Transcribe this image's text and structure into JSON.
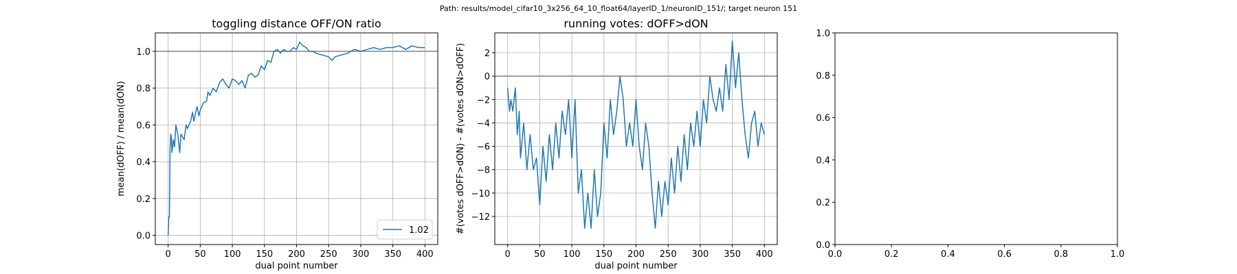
{
  "suptitle": "Path: results/model_cifar10_3x256_64_10_float64/layerID_1/neuronID_151/; target neuron 151",
  "colors": {
    "line": "#1f77b4",
    "refline": "#808080",
    "grid": "#b0b0b0",
    "axis": "#000000"
  },
  "chart_data": [
    {
      "type": "line",
      "title": "toggling distance OFF/ON ratio",
      "xlabel": "dual point number",
      "ylabel": "mean(dOFF) / mean(dON)",
      "xlim": [
        -20,
        420
      ],
      "ylim": [
        -0.05,
        1.1
      ],
      "xticks": [
        0,
        50,
        100,
        150,
        200,
        250,
        300,
        350,
        400
      ],
      "yticks": [
        0.0,
        0.2,
        0.4,
        0.6,
        0.8,
        1.0
      ],
      "ytick_labels": [
        "0.0",
        "0.2",
        "0.4",
        "0.6",
        "0.8",
        "1.0"
      ],
      "grid": true,
      "legend": {
        "placement": "lower-right",
        "entries": [
          "1.02"
        ]
      },
      "hline": 1.0,
      "series": [
        {
          "name": "1.02",
          "x": [
            0,
            1,
            2,
            3,
            4,
            5,
            6,
            8,
            10,
            12,
            15,
            18,
            20,
            25,
            28,
            30,
            35,
            38,
            40,
            45,
            48,
            50,
            55,
            60,
            62,
            65,
            70,
            75,
            80,
            85,
            90,
            95,
            100,
            105,
            110,
            115,
            120,
            125,
            130,
            135,
            140,
            145,
            150,
            155,
            160,
            165,
            170,
            175,
            180,
            185,
            190,
            195,
            200,
            205,
            210,
            215,
            220,
            225,
            230,
            240,
            250,
            255,
            260,
            270,
            280,
            290,
            300,
            310,
            320,
            330,
            340,
            350,
            360,
            370,
            380,
            390,
            400
          ],
          "y": [
            0.0,
            0.1,
            0.1,
            0.47,
            0.55,
            0.53,
            0.45,
            0.52,
            0.48,
            0.6,
            0.55,
            0.45,
            0.55,
            0.52,
            0.6,
            0.58,
            0.62,
            0.67,
            0.62,
            0.7,
            0.65,
            0.68,
            0.72,
            0.73,
            0.78,
            0.76,
            0.8,
            0.78,
            0.83,
            0.85,
            0.82,
            0.8,
            0.85,
            0.84,
            0.82,
            0.84,
            0.8,
            0.87,
            0.88,
            0.86,
            0.87,
            0.92,
            0.9,
            0.95,
            0.94,
            1.0,
            1.01,
            0.99,
            1.01,
            1.0,
            1.0,
            1.02,
            1.01,
            1.05,
            1.03,
            1.02,
            1.0,
            1.0,
            0.99,
            0.98,
            0.97,
            0.95,
            0.97,
            0.98,
            0.99,
            1.01,
            1.0,
            1.01,
            1.02,
            1.01,
            1.02,
            1.02,
            1.03,
            1.01,
            1.03,
            1.02,
            1.02
          ]
        }
      ]
    },
    {
      "type": "line",
      "title": "running votes: dOFF>dON",
      "xlabel": "dual point number",
      "ylabel": "#(votes dOFF>dON) - #(votes dON>dOFF)",
      "xlim": [
        -20,
        420
      ],
      "ylim": [
        -14.4,
        3.7
      ],
      "xticks": [
        0,
        50,
        100,
        150,
        200,
        250,
        300,
        350,
        400
      ],
      "yticks": [
        -12,
        -10,
        -8,
        -6,
        -4,
        -2,
        0,
        2
      ],
      "ytick_labels": [
        "−12",
        "−10",
        "−8",
        "−6",
        "−4",
        "−2",
        "0",
        "2"
      ],
      "grid": true,
      "hline": 0,
      "series": [
        {
          "x": [
            0,
            3,
            5,
            8,
            12,
            15,
            18,
            20,
            25,
            30,
            35,
            40,
            45,
            50,
            55,
            60,
            65,
            70,
            75,
            80,
            85,
            90,
            95,
            100,
            105,
            110,
            115,
            120,
            125,
            130,
            135,
            140,
            145,
            150,
            155,
            160,
            165,
            170,
            175,
            180,
            185,
            190,
            195,
            200,
            205,
            210,
            215,
            220,
            225,
            230,
            235,
            240,
            245,
            250,
            255,
            260,
            265,
            270,
            275,
            280,
            285,
            290,
            295,
            300,
            305,
            310,
            315,
            320,
            325,
            330,
            335,
            340,
            345,
            350,
            355,
            360,
            365,
            370,
            375,
            380,
            385,
            390,
            395,
            400
          ],
          "y": [
            -1,
            -3,
            -2,
            -3,
            -1,
            -5,
            -3,
            -7,
            -4,
            -8,
            -5,
            -8,
            -7,
            -11,
            -6,
            -9,
            -5,
            -8,
            -4,
            -7,
            -3,
            -5,
            -2,
            -7,
            -2,
            -10,
            -8,
            -13,
            -10,
            -13,
            -8,
            -12,
            -10,
            -4,
            -7,
            -2,
            -5,
            -3,
            0,
            -2,
            -6,
            -4,
            -6,
            -2,
            -6,
            -8,
            -4,
            -6,
            -10,
            -13,
            -9,
            -12,
            -9,
            -11,
            -7,
            -10,
            -6,
            -9,
            -5,
            -8,
            -4,
            -6,
            -3,
            -6,
            -2,
            -4,
            0,
            -2,
            -3,
            -1,
            -3,
            1,
            -2,
            3,
            -1,
            2,
            -2,
            -5,
            -7,
            -4,
            -3,
            -6,
            -4,
            -5
          ]
        }
      ]
    },
    {
      "type": "line",
      "title": "",
      "xlabel": "",
      "ylabel": "",
      "xlim": [
        0,
        1
      ],
      "ylim": [
        0,
        1
      ],
      "xticks": [
        0.0,
        0.2,
        0.4,
        0.6,
        0.8,
        1.0
      ],
      "yticks": [
        0.0,
        0.2,
        0.4,
        0.6,
        0.8,
        1.0
      ],
      "xtick_labels": [
        "0.0",
        "0.2",
        "0.4",
        "0.6",
        "0.8",
        "1.0"
      ],
      "ytick_labels": [
        "0.0",
        "0.2",
        "0.4",
        "0.6",
        "0.8",
        "1.0"
      ],
      "grid": false,
      "series": []
    }
  ]
}
